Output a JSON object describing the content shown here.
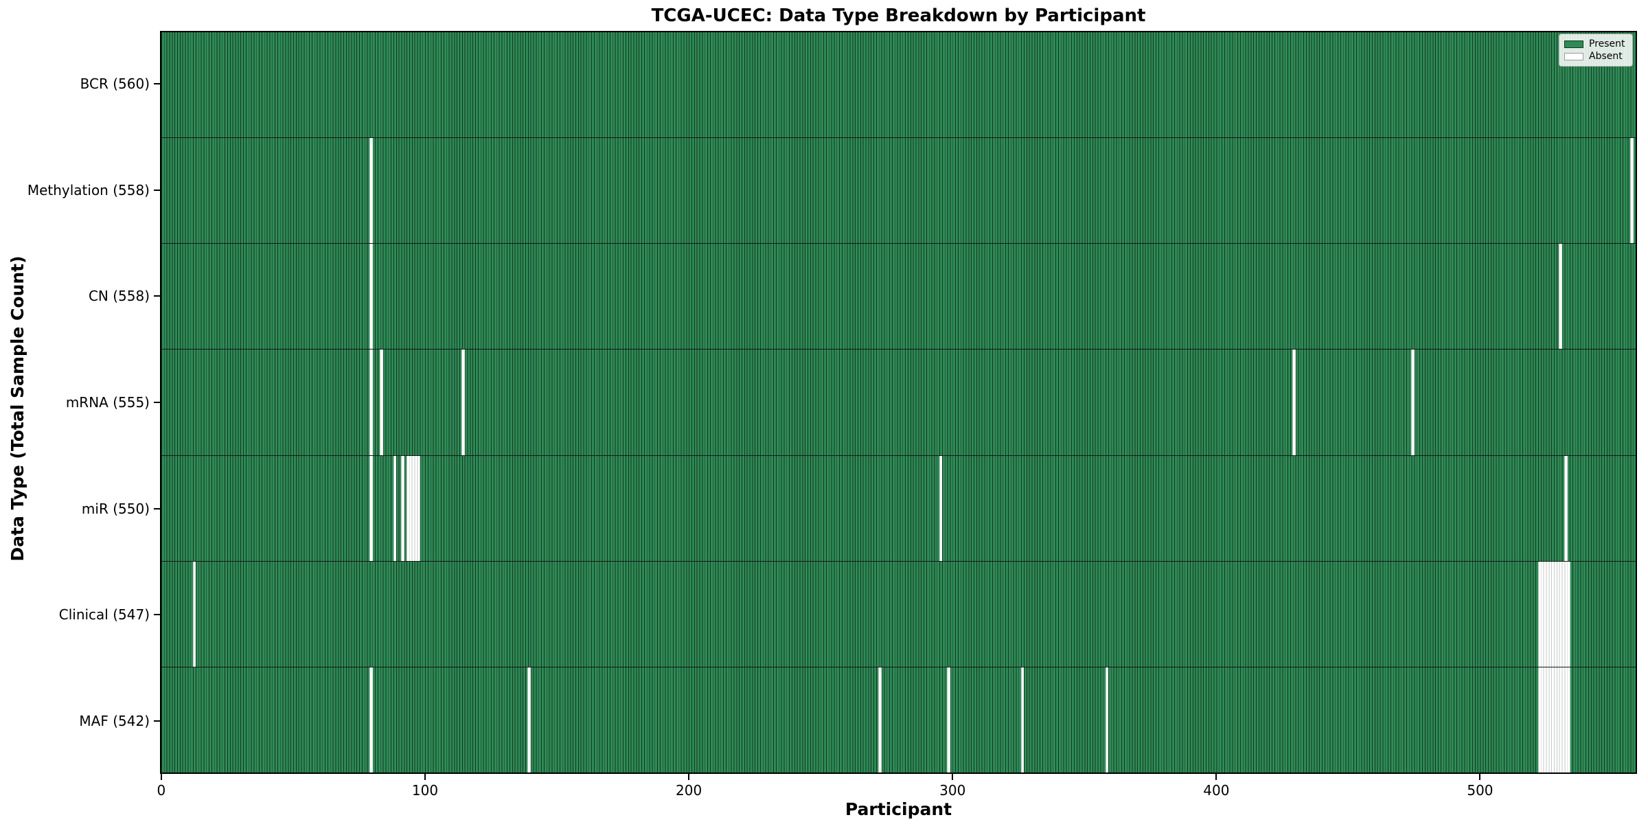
{
  "figure": {
    "title": "TCGA-UCEC: Data Type Breakdown by Participant"
  },
  "chart_data": {
    "type": "heatmap",
    "title": "TCGA-UCEC: Data Type Breakdown by Participant",
    "xlabel": "Participant",
    "ylabel": "Data Type (Total Sample Count)",
    "n_participants": 560,
    "xlim": [
      0,
      560
    ],
    "x_ticks": [
      0,
      100,
      200,
      300,
      400,
      500
    ],
    "grid": false,
    "legend": {
      "position": "upper right",
      "entries": [
        {
          "label": "Present",
          "color": "#2e8b57"
        },
        {
          "label": "Absent",
          "color": "#ffffff"
        }
      ]
    },
    "colors": {
      "present_fill": "#2e8b57",
      "present_edge": "#15351f",
      "absent_fill": "#ffffff",
      "absent_edge": "#c3c9c5",
      "row_separator": "#161616"
    },
    "rows": [
      {
        "name": "BCR",
        "label": "BCR (560)",
        "total": 560,
        "absent": []
      },
      {
        "name": "Methylation",
        "label": "Methylation (558)",
        "total": 558,
        "absent": [
          79,
          557
        ]
      },
      {
        "name": "CN",
        "label": "CN (558)",
        "total": 558,
        "absent": [
          79,
          530
        ]
      },
      {
        "name": "mRNA",
        "label": "mRNA (555)",
        "total": 555,
        "absent": [
          79,
          83,
          114,
          429,
          474
        ]
      },
      {
        "name": "miR",
        "label": "miR (550)",
        "total": 550,
        "absent": [
          79,
          88,
          91,
          93,
          94,
          95,
          96,
          97,
          295,
          532
        ]
      },
      {
        "name": "Clinical",
        "label": "Clinical (547)",
        "total": 547,
        "absent": [
          12,
          522,
          523,
          524,
          525,
          526,
          527,
          528,
          529,
          530,
          531,
          532,
          533
        ]
      },
      {
        "name": "MAF",
        "label": "MAF (542)",
        "total": 542,
        "absent": [
          79,
          139,
          272,
          298,
          326,
          358,
          522,
          523,
          524,
          525,
          526,
          527,
          528,
          529,
          530,
          531,
          532,
          533
        ]
      }
    ]
  }
}
